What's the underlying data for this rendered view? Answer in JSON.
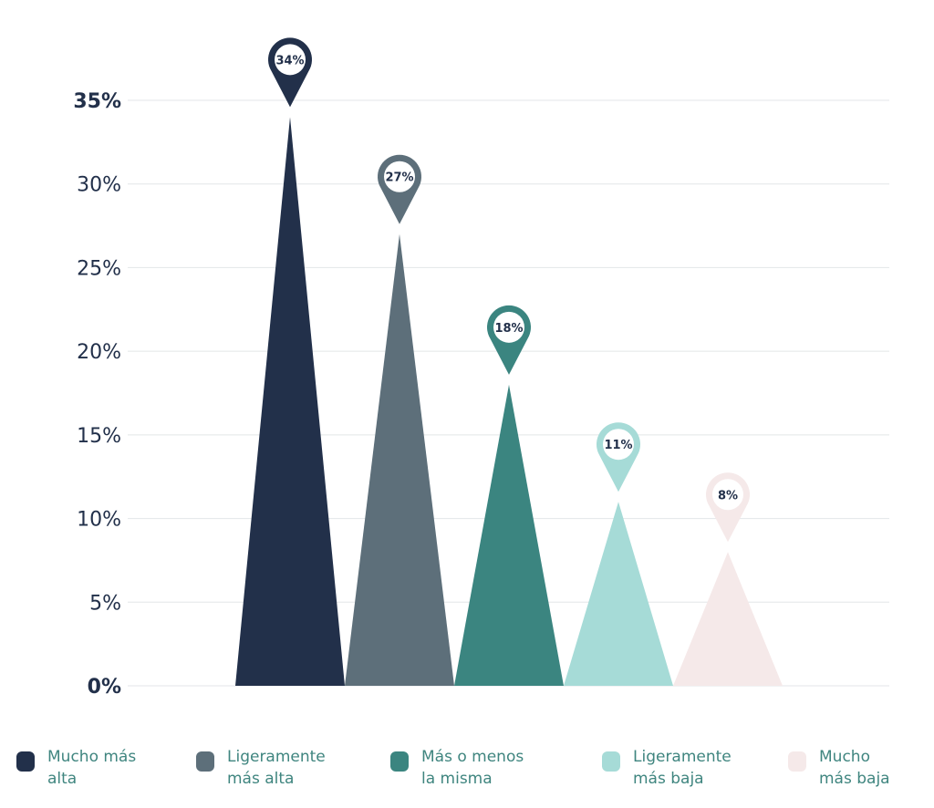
{
  "chart_data": {
    "type": "bar",
    "style": "triangle-pins",
    "categories": [
      "Mucho más alta",
      "Ligeramente más alta",
      "Más o menos la misma",
      "Ligeramente más baja",
      "Mucho más baja"
    ],
    "legend_labels": [
      "Mucho más\nalta",
      "Ligeramente\nmás alta",
      "Más o menos\nla misma",
      "Ligeramente\nmás baja",
      "Mucho\nmás baja"
    ],
    "values": [
      34,
      27,
      18,
      11,
      8
    ],
    "value_labels": [
      "34%",
      "27%",
      "18%",
      "11%",
      "8%"
    ],
    "colors": [
      "#22304a",
      "#5d6f7a",
      "#3b8580",
      "#a6dbd7",
      "#f5e9e9"
    ],
    "yticks": [
      0,
      5,
      10,
      15,
      20,
      25,
      30,
      35
    ],
    "ytick_labels": [
      "0%",
      "5%",
      "10%",
      "15%",
      "20%",
      "25%",
      "30%",
      "35%"
    ],
    "ylim": [
      0,
      35
    ],
    "grid": true,
    "legend_position": "bottom",
    "title": "",
    "xlabel": "",
    "ylabel": ""
  }
}
